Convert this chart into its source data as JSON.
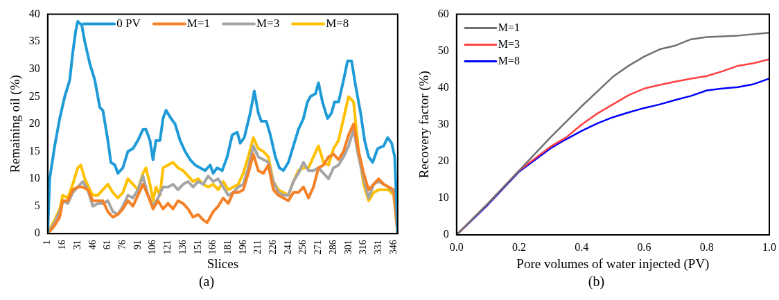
{
  "chart_data": [
    {
      "type": "line",
      "xlabel": "Slices",
      "ylabel": "Remaining oil (%)",
      "xlim": [
        1,
        350
      ],
      "xticks": [
        1,
        16,
        31,
        46,
        61,
        76,
        91,
        106,
        121,
        136,
        151,
        166,
        181,
        196,
        211,
        226,
        241,
        256,
        271,
        286,
        301,
        316,
        331,
        346
      ],
      "ylim": [
        0,
        40
      ],
      "yticks": [
        0,
        5,
        10,
        15,
        20,
        25,
        30,
        35,
        40
      ],
      "legend": "top",
      "annotations": [
        "(a)"
      ],
      "series": [
        {
          "name": "0 PV",
          "color": "#1e9bd7",
          "x": [
            1,
            3,
            8,
            13,
            18,
            23,
            26,
            29,
            31,
            35,
            38,
            43,
            48,
            53,
            56,
            61,
            64,
            68,
            71,
            76,
            81,
            86,
            91,
            96,
            99,
            103,
            106,
            109,
            113,
            116,
            119,
            124,
            128,
            133,
            138,
            143,
            148,
            153,
            158,
            163,
            166,
            170,
            175,
            180,
            185,
            190,
            193,
            197,
            203,
            207,
            211,
            214,
            219,
            223,
            228,
            232,
            236,
            241,
            246,
            251,
            256,
            260,
            263,
            268,
            271,
            275,
            280,
            284,
            287,
            291,
            296,
            300,
            304,
            308,
            313,
            317,
            321,
            325,
            330,
            336,
            340,
            344,
            347,
            350
          ],
          "values": [
            0,
            10,
            16,
            21,
            25,
            28,
            33,
            37,
            38.7,
            38,
            35,
            31,
            28,
            23,
            22.5,
            17,
            13,
            12.5,
            11,
            12,
            15,
            15.5,
            17,
            19,
            19,
            17,
            13.5,
            17,
            17,
            21,
            22.5,
            21,
            20,
            17,
            15,
            13.5,
            12.5,
            12,
            11.5,
            12.5,
            11,
            12,
            11.5,
            14,
            18,
            18.5,
            16.5,
            17.5,
            22,
            26,
            22,
            20.5,
            20.5,
            18,
            14,
            12,
            11.5,
            13,
            16,
            19,
            21,
            24,
            25,
            25.5,
            27.5,
            24,
            21,
            22,
            24,
            24,
            28,
            31.5,
            31.5,
            27,
            22,
            17,
            14,
            13,
            15.5,
            16,
            17.5,
            16.5,
            14,
            0
          ]
        },
        {
          "name": "M=1",
          "color": "#f58025",
          "x": [
            1,
            8,
            13,
            16,
            21,
            26,
            31,
            36,
            41,
            46,
            51,
            56,
            61,
            66,
            71,
            76,
            81,
            86,
            91,
            96,
            101,
            106,
            111,
            116,
            121,
            126,
            131,
            136,
            141,
            146,
            151,
            156,
            160,
            166,
            171,
            176,
            181,
            186,
            191,
            196,
            201,
            206,
            211,
            216,
            221,
            226,
            231,
            236,
            241,
            246,
            251,
            256,
            261,
            266,
            271,
            276,
            281,
            286,
            291,
            296,
            301,
            306,
            311,
            316,
            321,
            326,
            331,
            336,
            341,
            346,
            350
          ],
          "values": [
            0,
            1.5,
            3,
            6,
            6,
            8,
            8.5,
            8.5,
            8,
            6,
            6,
            6,
            4,
            3,
            3.5,
            4.5,
            6,
            5,
            7,
            9,
            7,
            4.5,
            6,
            4.5,
            5.5,
            4.5,
            6,
            5.5,
            4.5,
            3,
            3.5,
            2.5,
            2,
            4,
            5,
            6.5,
            5.5,
            7.5,
            7.5,
            8,
            11,
            14.5,
            11.5,
            11,
            12.5,
            8,
            7,
            6.5,
            6,
            7.5,
            7.5,
            8.5,
            6.5,
            8.5,
            12,
            12.5,
            14,
            14.5,
            13.5,
            15,
            18,
            20,
            15,
            11,
            8,
            9,
            10,
            9,
            8.5,
            8,
            0
          ]
        },
        {
          "name": "M=3",
          "color": "#a5a5a5",
          "x": [
            1,
            8,
            13,
            16,
            21,
            26,
            31,
            36,
            41,
            46,
            51,
            56,
            61,
            66,
            71,
            76,
            81,
            86,
            91,
            96,
            101,
            106,
            111,
            116,
            121,
            126,
            131,
            136,
            141,
            146,
            151,
            156,
            161,
            166,
            171,
            176,
            181,
            186,
            191,
            196,
            201,
            206,
            211,
            216,
            221,
            226,
            231,
            236,
            241,
            246,
            251,
            256,
            261,
            266,
            271,
            276,
            281,
            286,
            291,
            296,
            301,
            306,
            311,
            316,
            321,
            326,
            331,
            336,
            341,
            346,
            350
          ],
          "values": [
            0,
            2,
            4,
            6,
            5.5,
            7.5,
            8.5,
            9.5,
            8,
            5,
            5.5,
            5.5,
            6,
            4,
            3.5,
            5,
            7,
            6.5,
            8,
            10.5,
            7,
            5,
            6.5,
            8.5,
            8.5,
            9,
            8,
            9,
            9.5,
            8.5,
            9.5,
            9,
            10.5,
            9.5,
            10,
            8.5,
            7,
            7.5,
            8.5,
            9,
            12,
            16,
            14,
            13.5,
            13,
            9.5,
            7.5,
            7,
            7,
            9.5,
            11,
            13,
            11.5,
            11.5,
            12,
            11,
            10,
            12,
            12.5,
            14,
            16,
            19,
            14,
            10,
            6.5,
            9,
            9.5,
            9,
            8.5,
            7.5,
            0
          ]
        },
        {
          "name": "M=8",
          "color": "#ffc000",
          "x": [
            1,
            8,
            13,
            16,
            21,
            26,
            31,
            34,
            38,
            43,
            46,
            51,
            56,
            61,
            66,
            71,
            76,
            81,
            86,
            91,
            96,
            99,
            103,
            106,
            109,
            113,
            116,
            121,
            126,
            131,
            136,
            141,
            146,
            151,
            156,
            161,
            166,
            171,
            176,
            181,
            186,
            191,
            196,
            201,
            206,
            211,
            216,
            221,
            226,
            231,
            236,
            241,
            246,
            251,
            256,
            261,
            266,
            271,
            276,
            281,
            286,
            291,
            296,
            301,
            306,
            311,
            316,
            321,
            326,
            331,
            336,
            341,
            346,
            350
          ],
          "values": [
            0,
            2.5,
            4.5,
            7,
            6.5,
            9,
            12,
            12.5,
            10,
            8,
            7,
            7,
            8,
            9,
            7.5,
            6.5,
            7.5,
            10,
            9,
            8,
            11,
            12,
            9,
            6,
            8.5,
            7,
            12,
            12.5,
            13,
            12,
            11.5,
            10.5,
            9.5,
            10,
            9,
            8.5,
            9,
            8,
            9.5,
            8,
            8.5,
            9,
            11,
            14,
            17.5,
            15.5,
            15,
            14,
            9.5,
            8,
            7.5,
            7,
            9.5,
            11.5,
            12,
            12,
            14,
            16,
            13,
            12.5,
            15.5,
            17,
            21,
            25,
            24,
            15,
            9,
            6,
            7.5,
            8,
            8,
            8,
            7,
            0
          ]
        }
      ]
    },
    {
      "type": "line",
      "xlabel": "Pore volumes of water injected (PV)",
      "ylabel": "Recovery factor (%)",
      "xlim": [
        0,
        1
      ],
      "xticks": [
        {
          "value": 0,
          "label": "0.0"
        },
        0.2,
        0.4,
        0.6,
        0.8,
        {
          "value": 1,
          "label": "1.0"
        }
      ],
      "ylim": [
        0,
        60
      ],
      "yticks": [
        0,
        10,
        20,
        30,
        40,
        50,
        60
      ],
      "legend": "top left",
      "annotations": [
        "(b)"
      ],
      "series": [
        {
          "name": "M=1",
          "color": "#707070",
          "x": [
            0,
            0.1,
            0.2,
            0.3,
            0.4,
            0.5,
            0.55,
            0.6,
            0.65,
            0.7,
            0.75,
            0.8,
            0.9,
            1
          ],
          "values": [
            0,
            8.5,
            17.5,
            26.5,
            35,
            43,
            46,
            48.5,
            50.5,
            51.5,
            53.2,
            53.8,
            54.2,
            55
          ]
        },
        {
          "name": "M=3",
          "color": "#ff4040",
          "x": [
            0,
            0.1,
            0.2,
            0.3,
            0.35,
            0.4,
            0.45,
            0.5,
            0.55,
            0.6,
            0.65,
            0.7,
            0.75,
            0.8,
            0.85,
            0.9,
            0.95,
            1
          ],
          "values": [
            0,
            8.5,
            17.5,
            24,
            26.5,
            30,
            33,
            35.5,
            38,
            39.8,
            40.8,
            41.7,
            42.5,
            43.2,
            44.5,
            46,
            46.7,
            47.8
          ]
        },
        {
          "name": "M=8",
          "color": "#0000ff",
          "x": [
            0,
            0.1,
            0.2,
            0.3,
            0.35,
            0.4,
            0.45,
            0.5,
            0.55,
            0.6,
            0.65,
            0.7,
            0.75,
            0.8,
            0.85,
            0.9,
            0.95,
            1
          ],
          "values": [
            0,
            8.2,
            17.2,
            23.5,
            26,
            28.3,
            30.3,
            32,
            33.3,
            34.5,
            35.5,
            36.7,
            37.8,
            39.3,
            39.8,
            40.2,
            41,
            42.5
          ]
        }
      ]
    }
  ]
}
